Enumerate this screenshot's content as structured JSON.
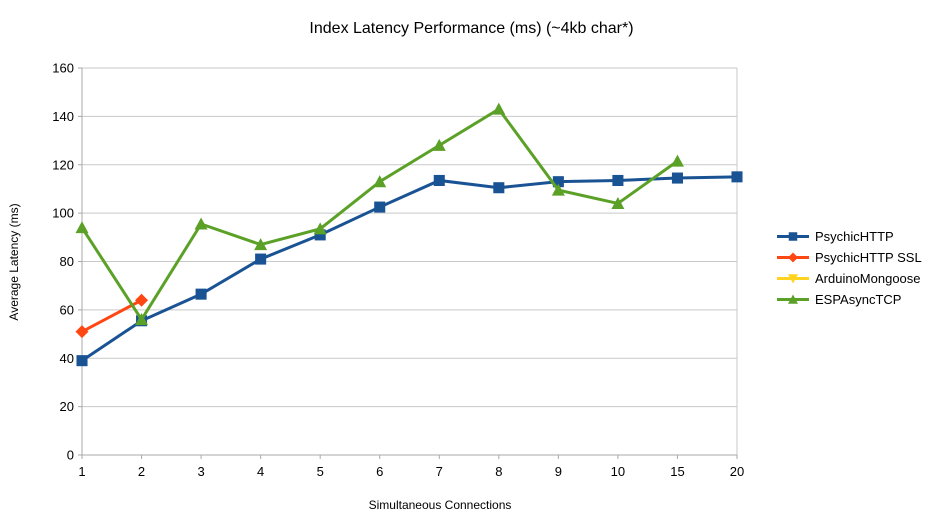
{
  "chart_data": {
    "type": "line",
    "title": "Index Latency Performance (ms) (~4kb char*)",
    "xlabel": "Simultaneous Connections",
    "ylabel": "Average Latency (ms)",
    "categories": [
      "1",
      "2",
      "3",
      "4",
      "5",
      "6",
      "7",
      "8",
      "9",
      "10",
      "15",
      "20"
    ],
    "ylim": [
      0,
      160
    ],
    "ytick_step": 20,
    "grid": "horizontal",
    "legend_position": "right",
    "series": [
      {
        "name": "PsychicHTTP",
        "color": "#1A5394",
        "marker": "square",
        "values": [
          39,
          55.5,
          66.5,
          81,
          91,
          102.5,
          113.5,
          110.5,
          113,
          113.5,
          114.5,
          115
        ]
      },
      {
        "name": "PsychicHTTP SSL",
        "color": "#FF4713",
        "marker": "diamond",
        "values": [
          51,
          64,
          null,
          null,
          null,
          null,
          null,
          null,
          null,
          null,
          null,
          null
        ]
      },
      {
        "name": "ArduinoMongoose",
        "color": "#FFD320",
        "marker": "triangle-down",
        "values": [
          null,
          null,
          null,
          null,
          null,
          null,
          null,
          null,
          null,
          null,
          null,
          null
        ]
      },
      {
        "name": "ESPAsyncTCP",
        "color": "#5BA127",
        "marker": "triangle-up",
        "values": [
          94,
          56,
          95.5,
          87,
          93.5,
          113,
          128,
          143,
          109.5,
          104,
          121.5,
          null
        ]
      }
    ]
  },
  "style": {
    "grid_color": "#C9C9C9",
    "axis_color": "#A8A8A8",
    "text_color": "#000000",
    "background": "#FFFFFF"
  }
}
